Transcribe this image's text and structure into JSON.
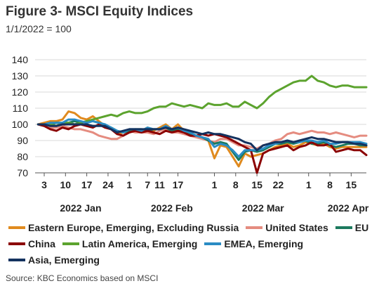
{
  "title": "Figure 3- MSCI Equity Indices",
  "subtitle": "1/1/2022 = 100",
  "source": "Source: KBC Economics based on MSCI",
  "chart_data": {
    "type": "line",
    "ylim": [
      70,
      140
    ],
    "yticks": [
      70,
      80,
      90,
      100,
      110,
      120,
      130,
      140
    ],
    "grid": "horizontal",
    "legend_position": "bottom",
    "x_ticks": [
      {
        "day": 3,
        "label": "3"
      },
      {
        "day": 10,
        "label": "10"
      },
      {
        "day": 17,
        "label": "17"
      },
      {
        "day": 24,
        "label": "24"
      },
      {
        "day": 31,
        "label": "1"
      },
      {
        "day": 37,
        "label": "7"
      },
      {
        "day": 41,
        "label": "11"
      },
      {
        "day": 47,
        "label": "17"
      },
      {
        "day": 59,
        "label": "1"
      },
      {
        "day": 66,
        "label": "8"
      },
      {
        "day": 73,
        "label": "15"
      },
      {
        "day": 80,
        "label": "22"
      },
      {
        "day": 90,
        "label": "1"
      },
      {
        "day": 97,
        "label": "8"
      },
      {
        "day": 104,
        "label": "15"
      }
    ],
    "month_labels": [
      {
        "day": 15,
        "label": "2022 Jan"
      },
      {
        "day": 45,
        "label": "2022 Feb"
      },
      {
        "day": 75,
        "label": "2022 Mar"
      },
      {
        "day": 103,
        "label": "2022 Apr"
      }
    ],
    "x": [
      1,
      3,
      5,
      7,
      9,
      11,
      13,
      15,
      17,
      19,
      21,
      23,
      25,
      27,
      29,
      31,
      33,
      35,
      37,
      39,
      41,
      43,
      45,
      47,
      49,
      51,
      53,
      55,
      57,
      59,
      61,
      63,
      65,
      67,
      69,
      71,
      73,
      75,
      77,
      79,
      81,
      83,
      85,
      87,
      89,
      91,
      93,
      95,
      97,
      99,
      101,
      103,
      105,
      107,
      109
    ],
    "series": [
      {
        "name": "Eastern Europe, Emerging, Excluding Russia",
        "color": "#E08A1E",
        "values": [
          100,
          101,
          102,
          102,
          103,
          108,
          107,
          104,
          103,
          105,
          102,
          99,
          98,
          94,
          95,
          96,
          97,
          96,
          98,
          96,
          98,
          100,
          97,
          100,
          96,
          95,
          93,
          92,
          90,
          79,
          87,
          86,
          80,
          74,
          82,
          80,
          81,
          82,
          84,
          86,
          87,
          88,
          86,
          87,
          89,
          88,
          87,
          88,
          86,
          85,
          86,
          86,
          86,
          86,
          86
        ]
      },
      {
        "name": "United States",
        "color": "#E58C80",
        "values": [
          100,
          99,
          98,
          98,
          99,
          98,
          97,
          97,
          96,
          95,
          93,
          92,
          91,
          91,
          93,
          96,
          95,
          95,
          95,
          94,
          96,
          97,
          95,
          95,
          94,
          93,
          92,
          91,
          90,
          89,
          91,
          91,
          89,
          87,
          87,
          86,
          85,
          87,
          88,
          90,
          91,
          94,
          95,
          94,
          95,
          96,
          95,
          95,
          94,
          95,
          94,
          93,
          92,
          93,
          93
        ]
      },
      {
        "name": "EU",
        "color": "#1C7A5E",
        "values": [
          100,
          100,
          100,
          101,
          101,
          101,
          102,
          101,
          102,
          102,
          101,
          99,
          98,
          96,
          95,
          96,
          97,
          97,
          96,
          97,
          97,
          98,
          96,
          97,
          95,
          94,
          93,
          92,
          90,
          88,
          89,
          88,
          83,
          78,
          83,
          84,
          83,
          84,
          86,
          88,
          88,
          89,
          88,
          89,
          90,
          88,
          88,
          89,
          87,
          86,
          87,
          88,
          88,
          87,
          87
        ]
      },
      {
        "name": "China",
        "color": "#8B0000",
        "values": [
          100,
          99,
          97,
          96,
          98,
          97,
          99,
          100,
          99,
          98,
          100,
          98,
          97,
          94,
          93,
          95,
          96,
          95,
          96,
          95,
          94,
          96,
          95,
          96,
          95,
          93,
          93,
          94,
          93,
          94,
          93,
          92,
          90,
          88,
          86,
          84,
          70,
          82,
          84,
          85,
          86,
          87,
          84,
          86,
          87,
          89,
          87,
          87,
          88,
          83,
          84,
          85,
          84,
          84,
          81
        ]
      },
      {
        "name": "Latin America, Emerging",
        "color": "#5CA32E",
        "values": [
          100,
          100,
          100,
          99,
          101,
          101,
          100,
          101,
          102,
          103,
          104,
          105,
          106,
          105,
          107,
          108,
          107,
          107,
          108,
          110,
          111,
          111,
          113,
          112,
          111,
          112,
          111,
          110,
          113,
          112,
          112,
          113,
          111,
          111,
          114,
          112,
          110,
          113,
          117,
          120,
          122,
          124,
          126,
          127,
          127,
          130,
          127,
          126,
          124,
          123,
          124,
          124,
          123,
          123,
          123
        ]
      },
      {
        "name": "EMEA, Emerging",
        "color": "#2A8CC4",
        "values": [
          100,
          100,
          101,
          101,
          101,
          103,
          103,
          102,
          101,
          102,
          101,
          100,
          98,
          96,
          95,
          97,
          97,
          96,
          98,
          97,
          97,
          99,
          97,
          98,
          96,
          95,
          93,
          92,
          91,
          86,
          88,
          87,
          84,
          80,
          84,
          84,
          84,
          85,
          87,
          88,
          89,
          90,
          89,
          89,
          90,
          90,
          89,
          90,
          88,
          88,
          89,
          89,
          89,
          89,
          88
        ]
      },
      {
        "name": "Asia, Emerging",
        "color": "#14325F",
        "values": [
          100,
          100,
          99,
          99,
          100,
          100,
          100,
          100,
          100,
          99,
          99,
          99,
          97,
          95,
          96,
          97,
          97,
          97,
          97,
          97,
          97,
          98,
          97,
          98,
          97,
          96,
          95,
          94,
          95,
          94,
          94,
          93,
          92,
          91,
          89,
          88,
          84,
          87,
          88,
          89,
          89,
          90,
          89,
          90,
          91,
          92,
          91,
          91,
          90,
          89,
          89,
          89,
          88,
          88,
          87
        ]
      }
    ]
  },
  "legend_rows": [
    [
      0,
      1,
      2
    ],
    [
      3,
      4,
      5
    ],
    [
      6
    ]
  ]
}
